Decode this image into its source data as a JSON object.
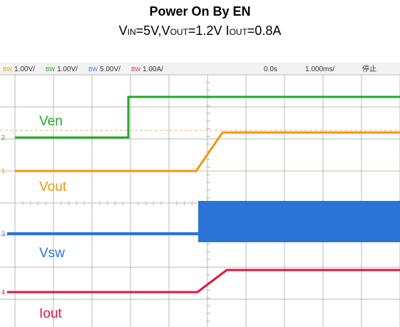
{
  "title": "Power On By EN",
  "subtitle": {
    "parts": [
      {
        "text": "V",
        "sub": false
      },
      {
        "text": "IN",
        "sub": true
      },
      {
        "text": "=5V,V",
        "sub": false
      },
      {
        "text": "OUT",
        "sub": true
      },
      {
        "text": "=1.2V I",
        "sub": false
      },
      {
        "text": "OUT",
        "sub": true
      },
      {
        "text": "=0.8A",
        "sub": false
      }
    ]
  },
  "scope_header": {
    "channels": [
      {
        "bw": "BW",
        "scale": "1.00V/",
        "color": "#d8b000"
      },
      {
        "bw": "BW",
        "scale": "1.00V/",
        "color": "#2ca02c"
      },
      {
        "bw": "BW",
        "scale": "5.00V/",
        "color": "#3a7fd8"
      },
      {
        "bw": "BW",
        "scale": "1.00A/",
        "color": "#e0304a"
      }
    ],
    "delay": "0.0s",
    "timebase": "1.000ms/",
    "status": "停止"
  },
  "traces": [
    {
      "label": "Ven",
      "marker": "2",
      "color": "#22a82a"
    },
    {
      "label": "Vout",
      "marker": "1",
      "color": "#f0960a"
    },
    {
      "label": "Vsw",
      "marker": "3",
      "color": "#2a74d6"
    },
    {
      "label": "Iout",
      "marker": "4",
      "color": "#e0143c"
    }
  ]
}
